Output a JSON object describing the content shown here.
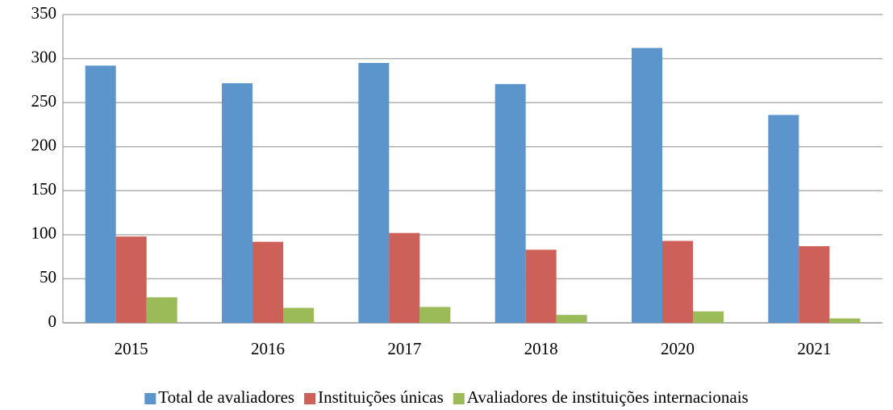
{
  "chart_data": {
    "type": "bar",
    "categories": [
      "2015",
      "2016",
      "2017",
      "2018",
      "2020",
      "2021"
    ],
    "series": [
      {
        "name": "Total de avaliadores",
        "color": "#5b95cc",
        "values": [
          292,
          272,
          295,
          271,
          312,
          236
        ]
      },
      {
        "name": "Instituições únicas",
        "color": "#cd6059",
        "values": [
          98,
          92,
          102,
          83,
          93,
          87
        ]
      },
      {
        "name": "Avaliadores de instituições internacionais",
        "color": "#9bbb59",
        "values": [
          29,
          17,
          18,
          9,
          13,
          5
        ]
      }
    ],
    "ylim": [
      0,
      350
    ],
    "yticks": [
      0,
      50,
      100,
      150,
      200,
      250,
      300,
      350
    ],
    "grid": true,
    "legend": "bottom"
  }
}
